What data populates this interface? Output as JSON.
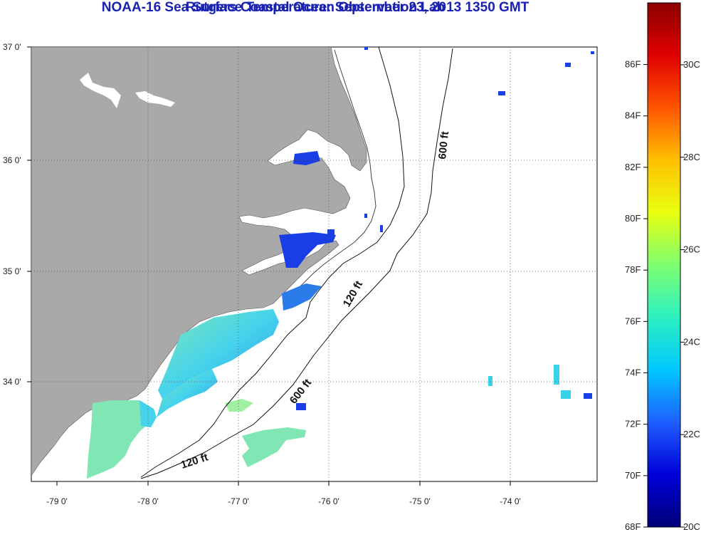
{
  "title": "NOAA-16 Sea Surface Temperature:  September 23, 2013 1350 GMT",
  "subtitle": "Rutgers Coastal Ocean Observation Lab",
  "lat_labels": [
    "37 0'",
    "36 0'",
    "35 0'",
    "34 0'"
  ],
  "lon_labels": [
    "-79 0'",
    "-78 0'",
    "-77 0'",
    "-76 0'",
    "-75 0'",
    "-74 0'"
  ],
  "contours": {
    "c600_north": "600 ft",
    "c120_mid": "120 ft",
    "c600_south": "600 ft",
    "c120_south": "120 ft"
  },
  "colorbar": {
    "fahrenheit": [
      "86F",
      "84F",
      "82F",
      "80F",
      "78F",
      "76F",
      "74F",
      "72F",
      "70F",
      "68F"
    ],
    "celsius": [
      "30C",
      "28C",
      "26C",
      "24C",
      "22C",
      "20C"
    ],
    "stops": [
      "#00007a",
      "#0000d8",
      "#1f5fff",
      "#00c8ff",
      "#2cf0c0",
      "#7fff70",
      "#e8ff10",
      "#ffc000",
      "#ff5500",
      "#e00000",
      "#8c0000"
    ]
  },
  "colors": {
    "land": "#a9a9a9",
    "ocean": "#ffffff",
    "title": "#1a22b0",
    "sst_cold": "#1a3ee6",
    "sst_warm": "#3ad2e8"
  }
}
